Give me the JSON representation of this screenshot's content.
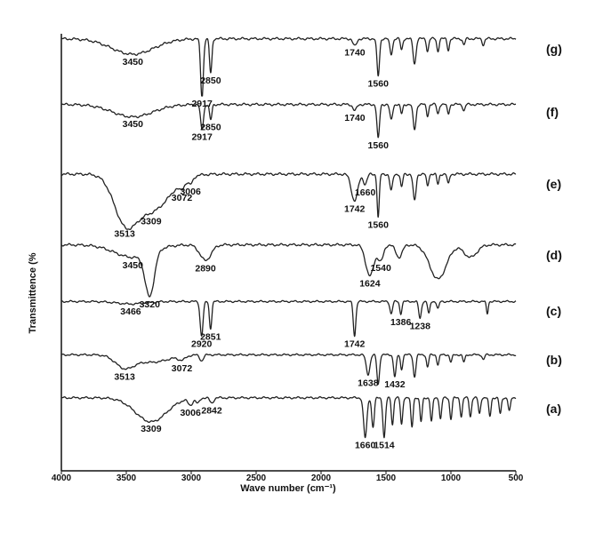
{
  "chart_data": {
    "type": "line",
    "xlabel": "Wave number (cm⁻¹)",
    "ylabel": "Transmittence (%",
    "xlim": [
      4000,
      500
    ],
    "x_ticks": [
      "4000",
      "3500",
      "3000",
      "2500",
      "2000",
      "1500",
      "1000",
      "500"
    ],
    "grid": false,
    "series": [
      {
        "name": "(g)",
        "baseline": 0.92,
        "peaks": [
          {
            "x": 3450,
            "depth": 0.25,
            "width": 230,
            "label": "3450"
          },
          {
            "x": 2917,
            "depth": 0.95,
            "width": 15,
            "label": "2917"
          },
          {
            "x": 2850,
            "depth": 0.55,
            "width": 13,
            "label": "2850"
          },
          {
            "x": 1740,
            "depth": 0.12,
            "width": 20,
            "label": "1740"
          },
          {
            "x": 1560,
            "depth": 0.6,
            "width": 14,
            "label": "1560"
          },
          {
            "x": 1460,
            "depth": 0.25,
            "width": 15
          },
          {
            "x": 1380,
            "depth": 0.18,
            "width": 12
          },
          {
            "x": 1280,
            "depth": 0.4,
            "width": 16
          },
          {
            "x": 1180,
            "depth": 0.2,
            "width": 12
          },
          {
            "x": 1100,
            "depth": 0.2,
            "width": 12
          },
          {
            "x": 1020,
            "depth": 0.18,
            "width": 12
          },
          {
            "x": 900,
            "depth": 0.1,
            "width": 12
          },
          {
            "x": 750,
            "depth": 0.1,
            "width": 12
          }
        ]
      },
      {
        "name": "(f)",
        "baseline": 0.92,
        "peaks": [
          {
            "x": 3450,
            "depth": 0.2,
            "width": 220,
            "label": "3450"
          },
          {
            "x": 2917,
            "depth": 0.4,
            "width": 16,
            "label": "2917"
          },
          {
            "x": 2850,
            "depth": 0.25,
            "width": 13,
            "label": "2850"
          },
          {
            "x": 1740,
            "depth": 0.1,
            "width": 20,
            "label": "1740"
          },
          {
            "x": 1560,
            "depth": 0.55,
            "width": 14,
            "label": "1560"
          },
          {
            "x": 1460,
            "depth": 0.25,
            "width": 15
          },
          {
            "x": 1380,
            "depth": 0.15,
            "width": 12
          },
          {
            "x": 1280,
            "depth": 0.4,
            "width": 16
          },
          {
            "x": 1180,
            "depth": 0.18,
            "width": 12
          },
          {
            "x": 1100,
            "depth": 0.15,
            "width": 12
          },
          {
            "x": 1020,
            "depth": 0.15,
            "width": 12
          },
          {
            "x": 900,
            "depth": 0.1,
            "width": 12
          }
        ]
      },
      {
        "name": "(e)",
        "baseline": 0.92,
        "peaks": [
          {
            "x": 3513,
            "depth": 0.6,
            "width": 120,
            "label": "3513"
          },
          {
            "x": 3309,
            "depth": 0.55,
            "width": 200,
            "label": "3309"
          },
          {
            "x": 3072,
            "depth": 0.1,
            "width": 30,
            "label": "3072"
          },
          {
            "x": 3006,
            "depth": 0.1,
            "width": 25,
            "label": "3006"
          },
          {
            "x": 1742,
            "depth": 0.4,
            "width": 35,
            "label": "1742"
          },
          {
            "x": 1660,
            "depth": 0.15,
            "width": 20,
            "label": "1660"
          },
          {
            "x": 1560,
            "depth": 0.65,
            "width": 12,
            "label": "1560"
          },
          {
            "x": 1460,
            "depth": 0.25,
            "width": 15
          },
          {
            "x": 1380,
            "depth": 0.2,
            "width": 12
          },
          {
            "x": 1280,
            "depth": 0.4,
            "width": 16
          },
          {
            "x": 1180,
            "depth": 0.18,
            "width": 12
          },
          {
            "x": 1100,
            "depth": 0.15,
            "width": 12
          },
          {
            "x": 1020,
            "depth": 0.15,
            "width": 12
          }
        ]
      },
      {
        "name": "(d)",
        "baseline": 0.92,
        "peaks": [
          {
            "x": 3450,
            "depth": 0.2,
            "width": 200,
            "label": "3450"
          },
          {
            "x": 3320,
            "depth": 0.7,
            "width": 50,
            "label": "3320"
          },
          {
            "x": 2890,
            "depth": 0.25,
            "width": 60,
            "label": "2890"
          },
          {
            "x": 1624,
            "depth": 0.5,
            "width": 45,
            "label": "1624"
          },
          {
            "x": 1540,
            "depth": 0.25,
            "width": 30,
            "label": "1540"
          },
          {
            "x": 1400,
            "depth": 0.2,
            "width": 35
          },
          {
            "x": 1100,
            "depth": 0.55,
            "width": 90
          },
          {
            "x": 850,
            "depth": 0.2,
            "width": 70
          }
        ]
      },
      {
        "name": "(c)",
        "baseline": 0.92,
        "peaks": [
          {
            "x": 3466,
            "depth": 0.05,
            "width": 150,
            "label": "3466"
          },
          {
            "x": 2920,
            "depth": 0.7,
            "width": 16,
            "label": "2920"
          },
          {
            "x": 2851,
            "depth": 0.55,
            "width": 13,
            "label": "2851"
          },
          {
            "x": 1742,
            "depth": 0.7,
            "width": 14,
            "label": "1742"
          },
          {
            "x": 1460,
            "depth": 0.25,
            "width": 14
          },
          {
            "x": 1386,
            "depth": 0.25,
            "width": 12,
            "label": "1386"
          },
          {
            "x": 1238,
            "depth": 0.35,
            "width": 14,
            "label": "1238"
          },
          {
            "x": 1170,
            "depth": 0.25,
            "width": 12
          },
          {
            "x": 1100,
            "depth": 0.15,
            "width": 12
          },
          {
            "x": 720,
            "depth": 0.25,
            "width": 10
          }
        ]
      },
      {
        "name": "(b)",
        "baseline": 0.92,
        "peaks": [
          {
            "x": 3513,
            "depth": 0.25,
            "width": 100,
            "label": "3513"
          },
          {
            "x": 3300,
            "depth": 0.15,
            "width": 180
          },
          {
            "x": 3072,
            "depth": 0.08,
            "width": 40,
            "label": "3072"
          },
          {
            "x": 2920,
            "depth": 0.12,
            "width": 20
          },
          {
            "x": 1638,
            "depth": 0.4,
            "width": 20,
            "label": "1638"
          },
          {
            "x": 1560,
            "depth": 0.6,
            "width": 14
          },
          {
            "x": 1432,
            "depth": 0.45,
            "width": 14,
            "label": "1432"
          },
          {
            "x": 1380,
            "depth": 0.3,
            "width": 12
          },
          {
            "x": 1280,
            "depth": 0.45,
            "width": 14
          },
          {
            "x": 1180,
            "depth": 0.25,
            "width": 12
          },
          {
            "x": 1100,
            "depth": 0.2,
            "width": 12
          },
          {
            "x": 1000,
            "depth": 0.15,
            "width": 12
          },
          {
            "x": 900,
            "depth": 0.15,
            "width": 12
          },
          {
            "x": 750,
            "depth": 0.1,
            "width": 12
          }
        ]
      },
      {
        "name": "(a)",
        "baseline": 0.92,
        "peaks": [
          {
            "x": 3309,
            "depth": 0.45,
            "width": 170,
            "label": "3309"
          },
          {
            "x": 3006,
            "depth": 0.12,
            "width": 25,
            "label": "3006"
          },
          {
            "x": 2842,
            "depth": 0.1,
            "width": 20,
            "label": "2842"
          },
          {
            "x": 2950,
            "depth": 0.1,
            "width": 20
          },
          {
            "x": 1660,
            "depth": 0.75,
            "width": 18,
            "label": "1660"
          },
          {
            "x": 1600,
            "depth": 0.55,
            "width": 14
          },
          {
            "x": 1514,
            "depth": 0.75,
            "width": 14,
            "label": "1514"
          },
          {
            "x": 1450,
            "depth": 0.5,
            "width": 12
          },
          {
            "x": 1380,
            "depth": 0.5,
            "width": 12
          },
          {
            "x": 1300,
            "depth": 0.55,
            "width": 12
          },
          {
            "x": 1230,
            "depth": 0.45,
            "width": 12
          },
          {
            "x": 1150,
            "depth": 0.45,
            "width": 12
          },
          {
            "x": 1080,
            "depth": 0.4,
            "width": 12
          },
          {
            "x": 1000,
            "depth": 0.4,
            "width": 12
          },
          {
            "x": 920,
            "depth": 0.35,
            "width": 12
          },
          {
            "x": 850,
            "depth": 0.35,
            "width": 12
          },
          {
            "x": 780,
            "depth": 0.3,
            "width": 12
          },
          {
            "x": 700,
            "depth": 0.35,
            "width": 12
          },
          {
            "x": 620,
            "depth": 0.3,
            "width": 12
          },
          {
            "x": 550,
            "depth": 0.25,
            "width": 12
          }
        ]
      }
    ]
  }
}
